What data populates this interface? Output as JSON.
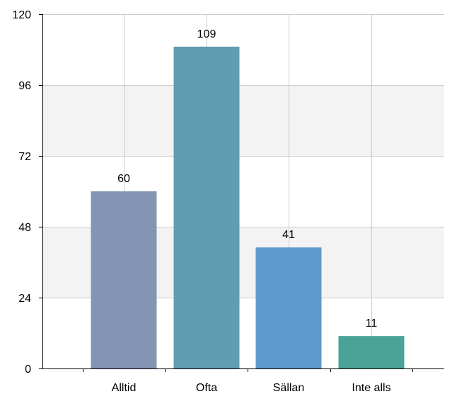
{
  "chart_data": {
    "type": "bar",
    "categories": [
      "Alltid",
      "Ofta",
      "Sällan",
      "Inte alls"
    ],
    "values": [
      60,
      109,
      41,
      11
    ],
    "data_labels": [
      "60",
      "109",
      "41",
      "11"
    ],
    "colors": [
      "#8494b4",
      "#629cb0",
      "#5e9acb",
      "#4aa397"
    ],
    "ylim": [
      0,
      120
    ],
    "yticks": [
      0,
      24,
      48,
      72,
      96,
      120
    ],
    "ytick_labels": [
      "0",
      "24",
      "48",
      "72",
      "96",
      "120"
    ],
    "grid": true,
    "band_color": "#f3f3f3",
    "grid_color": "#cccccc",
    "title": "",
    "xlabel": "",
    "ylabel": ""
  }
}
